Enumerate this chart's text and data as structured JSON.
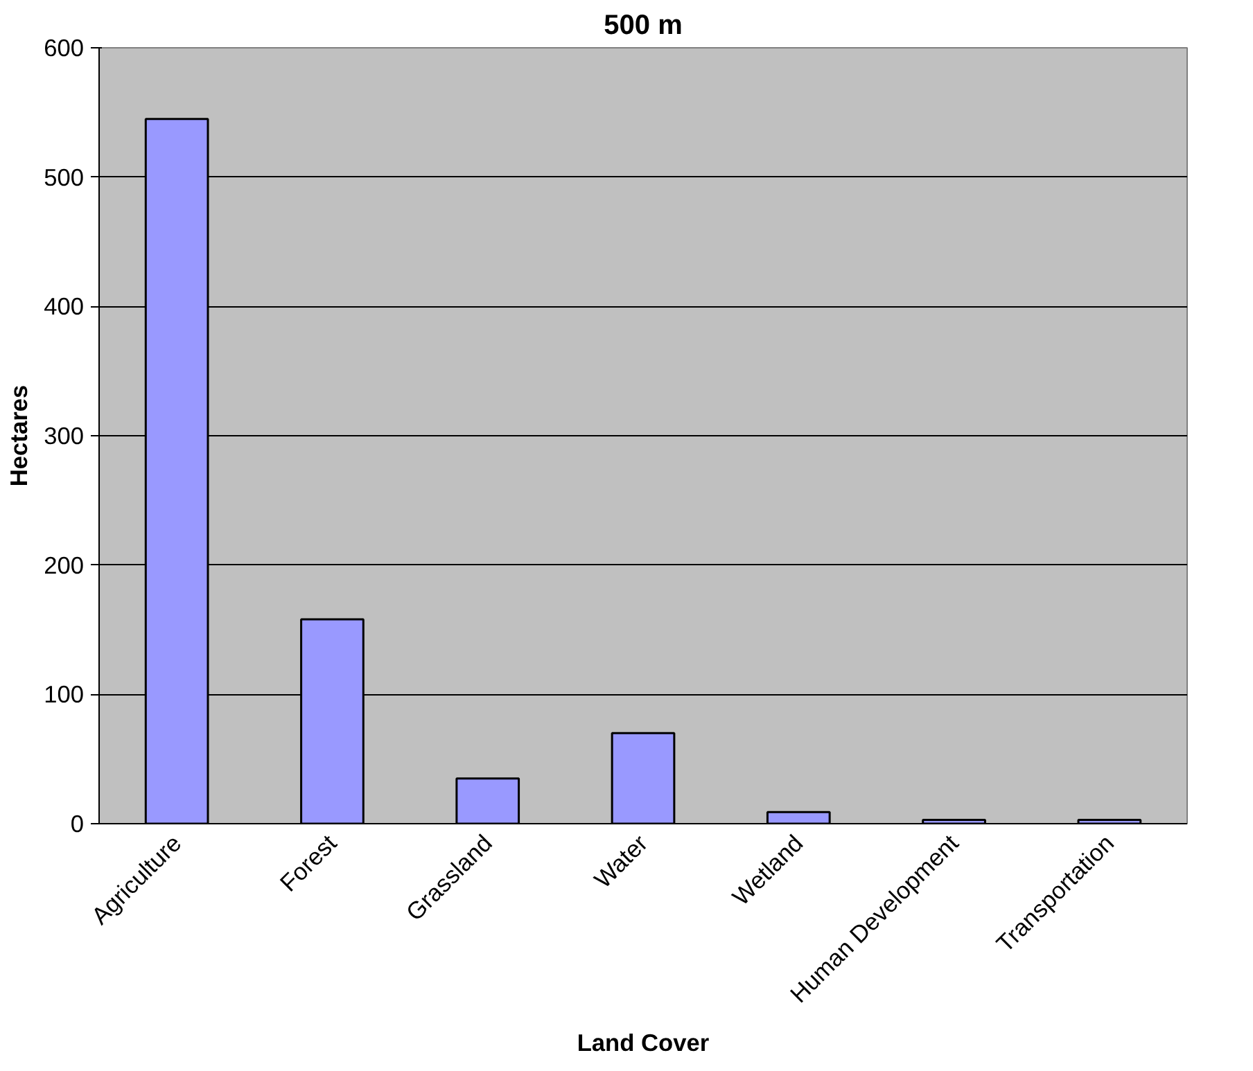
{
  "chart_data": {
    "type": "bar",
    "title": "500 m",
    "xlabel": "Land Cover",
    "ylabel": "Hectares",
    "categories": [
      "Agriculture",
      "Forest",
      "Grassland",
      "Water",
      "Wetland",
      "Human Development",
      "Transportation"
    ],
    "values": [
      545,
      158,
      35,
      70,
      9,
      3,
      3
    ],
    "color": "#9999ff",
    "ylim": [
      0,
      600
    ],
    "yticks": [
      0,
      100,
      200,
      300,
      400,
      500,
      600
    ],
    "grid": "y"
  }
}
